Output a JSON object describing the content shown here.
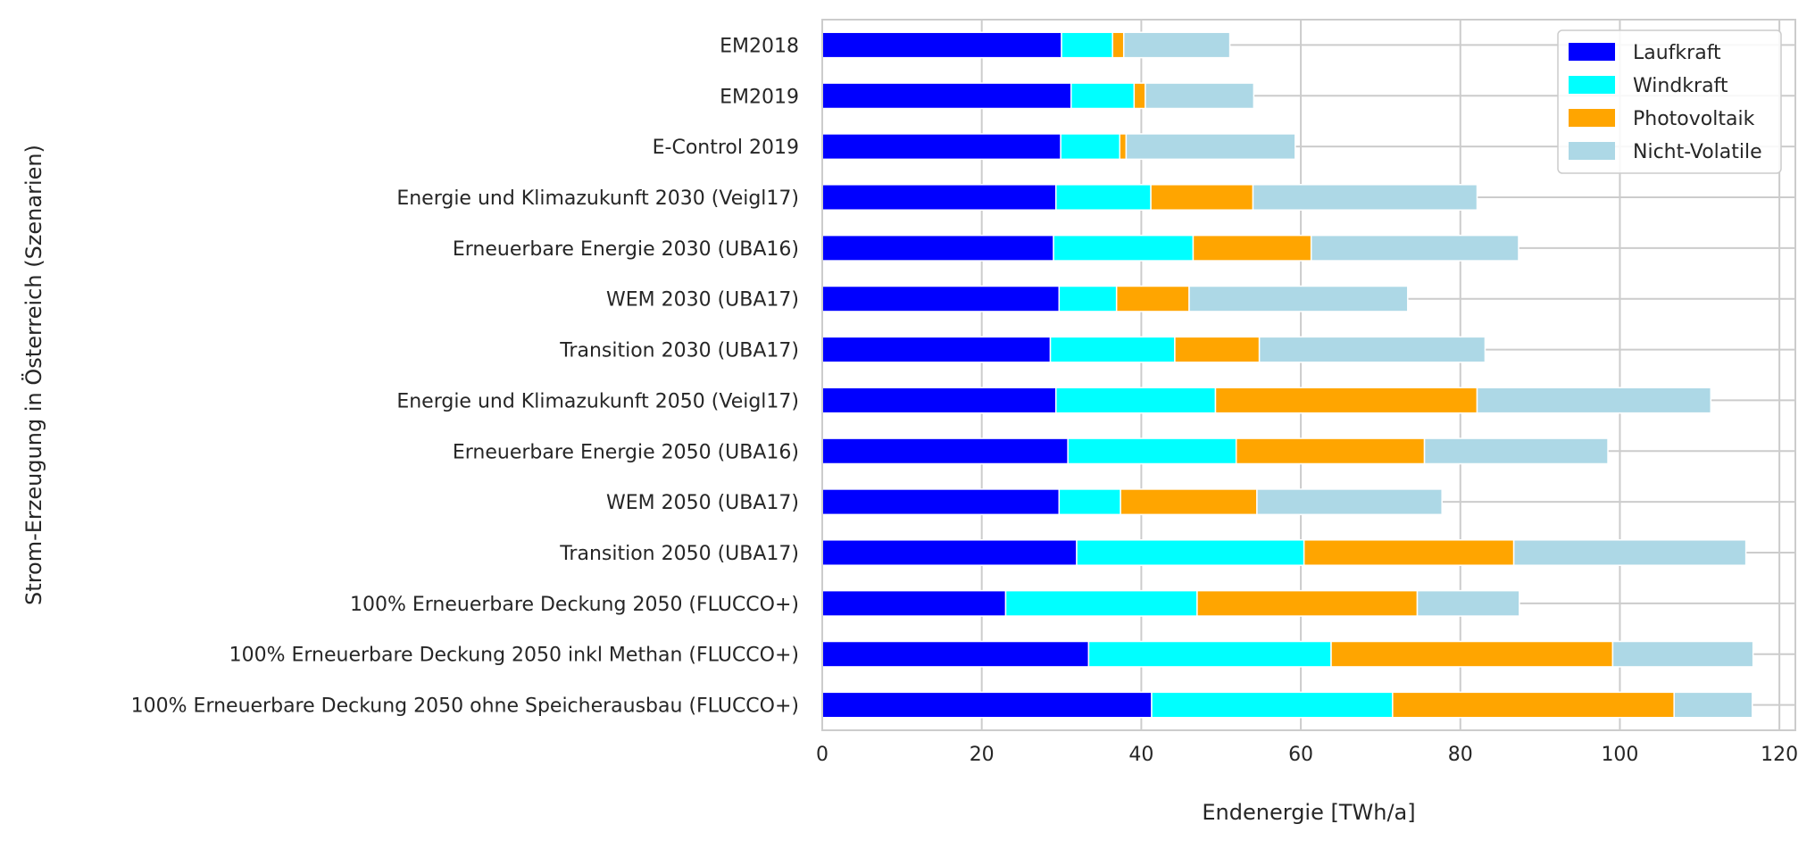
{
  "chart_data": {
    "type": "bar",
    "orientation": "horizontal",
    "stacked": true,
    "xlabel": "Endenergie [TWh/a]",
    "ylabel": "Strom-Erzeugung in Österreich (Szenarien)",
    "xlim": [
      0,
      122
    ],
    "xticks": [
      0,
      20,
      40,
      60,
      80,
      100,
      120
    ],
    "grid": true,
    "legend_position": "top-right",
    "categories": [
      "EM2018",
      "EM2019",
      "E-Control 2019",
      "Energie und Klimazukunft 2030 (Veigl17)",
      "Erneuerbare Energie 2030 (UBA16)",
      "WEM 2030 (UBA17)",
      "Transition 2030 (UBA17)",
      "Energie und Klimazukunft 2050 (Veigl17)",
      "Erneuerbare Energie 2050 (UBA16)",
      "WEM 2050 (UBA17)",
      "Transition 2050 (UBA17)",
      "100% Erneuerbare Deckung 2050 (FLUCCO+)",
      "100% Erneuerbare Deckung 2050 inkl Methan (FLUCCO+)",
      "100% Erneuerbare Deckung 2050 ohne Speicherausbau (FLUCCO+)"
    ],
    "series": [
      {
        "name": "Laufkraft",
        "color": "#0000ff",
        "values": [
          30.0,
          31.2,
          29.9,
          29.3,
          29.0,
          29.7,
          28.6,
          29.3,
          30.8,
          29.7,
          31.9,
          23.0,
          33.4,
          41.3
        ]
      },
      {
        "name": "Windkraft",
        "color": "#00ffff",
        "values": [
          6.4,
          7.9,
          7.4,
          11.9,
          17.5,
          7.2,
          15.6,
          20.0,
          21.1,
          7.7,
          28.5,
          24.0,
          30.4,
          30.2
        ]
      },
      {
        "name": "Photovoltaik",
        "color": "#ffa500",
        "values": [
          1.4,
          1.4,
          0.8,
          12.8,
          14.8,
          9.1,
          10.6,
          32.8,
          23.6,
          17.1,
          26.3,
          27.6,
          35.3,
          35.3
        ]
      },
      {
        "name": "Nicht-Volatile",
        "color": "#add8e6",
        "values": [
          13.3,
          13.6,
          21.2,
          28.1,
          26.0,
          27.4,
          28.3,
          29.3,
          23.0,
          23.2,
          29.1,
          12.8,
          17.6,
          9.8
        ]
      }
    ]
  }
}
